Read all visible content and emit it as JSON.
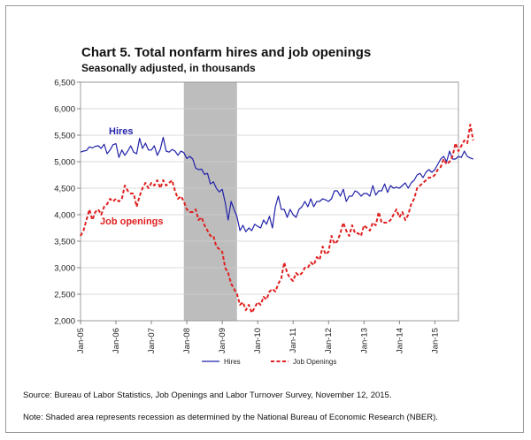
{
  "title": "Chart 5. Total nonfarm hires and job openings",
  "subtitle": "Seasonally adjusted, in thousands",
  "source": "Source: Bureau of Labor Statistics,  Job Openings and Labor Turnover Survey, November 12, 2015.",
  "note": "Note: Shaded area represents recession as determined by the National Bureau of Economic Research (NBER).",
  "colors": {
    "hires": "#2222aa",
    "openings": "#e01f1f",
    "recession": "#bdbdbd"
  },
  "chart_data": {
    "type": "line",
    "title": "Chart 5. Total nonfarm hires and job openings",
    "subtitle": "Seasonally adjusted, in thousands",
    "ylim": [
      2000,
      6500
    ],
    "yticks": [
      "2,000",
      "2,500",
      "3,000",
      "3,500",
      "4,000",
      "4,500",
      "5,000",
      "5,500",
      "6,000",
      "6,500"
    ],
    "xlim": [
      "Jan-05",
      "Sep-15"
    ],
    "xticks": [
      "Jan-05",
      "Jan-06",
      "Jan-07",
      "Jan-08",
      "Jan-09",
      "Jan-10",
      "Jan-11",
      "Jan-12",
      "Jan-13",
      "Jan-14",
      "Jan-15"
    ],
    "grid": true,
    "recession": {
      "start": "Dec-07",
      "end": "Jun-09"
    },
    "annotations": [
      {
        "text": "Hires",
        "series": "Hires"
      },
      {
        "text": "Job openings",
        "series": "Job Openings"
      }
    ],
    "legend_position": "bottom",
    "series": [
      {
        "name": "Hires",
        "style": "solid",
        "values": [
          5180,
          5200,
          5210,
          5280,
          5260,
          5290,
          5300,
          5250,
          5330,
          5150,
          5220,
          5320,
          5340,
          5080,
          5220,
          5120,
          5200,
          5300,
          5180,
          5150,
          5440,
          5250,
          5350,
          5220,
          5220,
          5300,
          5120,
          5230,
          5460,
          5200,
          5180,
          5230,
          5200,
          5120,
          5200,
          5170,
          5060,
          5100,
          5050,
          4880,
          4850,
          4860,
          4760,
          4780,
          4580,
          4620,
          4500,
          4430,
          4480,
          4230,
          3900,
          4250,
          4100,
          3960,
          3700,
          3800,
          3680,
          3750,
          3700,
          3820,
          3780,
          3750,
          3900,
          3820,
          3970,
          3750,
          4150,
          4350,
          4100,
          4100,
          3950,
          4100,
          4000,
          3950,
          4100,
          4150,
          4250,
          4150,
          4300,
          4150,
          4250,
          4250,
          4300,
          4280,
          4250,
          4300,
          4450,
          4450,
          4350,
          4480,
          4250,
          4350,
          4350,
          4450,
          4420,
          4350,
          4400,
          4400,
          4350,
          4550,
          4370,
          4450,
          4450,
          4580,
          4420,
          4550,
          4500,
          4520,
          4500,
          4550,
          4600,
          4500,
          4600,
          4650,
          4750,
          4780,
          4700,
          4800,
          4850,
          4800,
          4850,
          4950,
          5050,
          5100,
          5000,
          5200,
          5050,
          5050,
          5100,
          5080,
          5200,
          5100,
          5070,
          5050
        ]
      },
      {
        "name": "Job Openings",
        "style": "dashed",
        "values": [
          3600,
          3700,
          3900,
          4100,
          3900,
          4050,
          4100,
          4000,
          4150,
          4200,
          4300,
          4250,
          4300,
          4250,
          4300,
          4550,
          4450,
          4400,
          4400,
          4150,
          4350,
          4500,
          4600,
          4500,
          4600,
          4550,
          4650,
          4500,
          4650,
          4550,
          4600,
          4650,
          4450,
          4300,
          4350,
          4250,
          4100,
          4050,
          4050,
          4100,
          3900,
          3950,
          3800,
          3700,
          3600,
          3600,
          3400,
          3350,
          3300,
          3000,
          2900,
          2700,
          2600,
          2500,
          2300,
          2350,
          2200,
          2300,
          2150,
          2250,
          2350,
          2300,
          2450,
          2400,
          2550,
          2600,
          2550,
          2700,
          2800,
          3100,
          2900,
          2800,
          2750,
          2900,
          2850,
          2900,
          3000,
          3000,
          3100,
          3050,
          3200,
          3150,
          3400,
          3250,
          3300,
          3600,
          3450,
          3500,
          3650,
          3850,
          3700,
          3600,
          3800,
          3650,
          3650,
          3600,
          3800,
          3750,
          3700,
          3850,
          3800,
          4050,
          3850,
          3850,
          3850,
          3900,
          4000,
          4100,
          3950,
          4050,
          3900,
          4000,
          4200,
          4300,
          4500,
          4550,
          4600,
          4650,
          4700,
          4700,
          4750,
          4850,
          4900,
          5050,
          4950,
          5000,
          5100,
          5350,
          5200,
          5300,
          5400,
          5350,
          5700,
          5400
        ]
      }
    ]
  }
}
